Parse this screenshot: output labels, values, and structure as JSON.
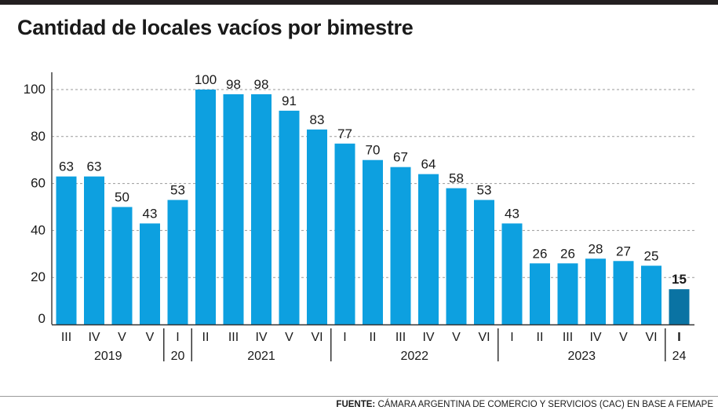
{
  "title": "Cantidad de locales vacíos por bimestre",
  "source": {
    "label": "FUENTE:",
    "text": "CÁMARA ARGENTINA DE COMERCIO Y SERVICIOS (CAC) EN BASE A FEMAPE"
  },
  "colors": {
    "bar": "#0da0e0",
    "highlight_bar": "#0a73a3",
    "grid": "#9a9a9a",
    "text": "#1a1a1a"
  },
  "chart_data": {
    "type": "bar",
    "title": "Cantidad de locales vacíos por bimestre",
    "xlabel": "",
    "ylabel": "",
    "ylim": [
      0,
      100
    ],
    "yticks": [
      0,
      20,
      40,
      60,
      80,
      100
    ],
    "grid": true,
    "categories": [
      "III",
      "IV",
      "V",
      "V",
      "I",
      "II",
      "III",
      "IV",
      "V",
      "VI",
      "I",
      "II",
      "III",
      "IV",
      "V",
      "VI",
      "I",
      "II",
      "III",
      "IV",
      "V",
      "VI",
      "I"
    ],
    "values": [
      63,
      63,
      50,
      43,
      53,
      100,
      98,
      98,
      91,
      83,
      77,
      70,
      67,
      64,
      58,
      53,
      43,
      26,
      26,
      28,
      27,
      25,
      15
    ],
    "highlight_index": 22,
    "year_groups": [
      {
        "label": "2019",
        "start": 0,
        "end": 3
      },
      {
        "label": "20",
        "start": 4,
        "end": 4
      },
      {
        "label": "2021",
        "start": 5,
        "end": 9
      },
      {
        "label": "2022",
        "start": 10,
        "end": 15
      },
      {
        "label": "2023",
        "start": 16,
        "end": 21
      },
      {
        "label": "24",
        "start": 22,
        "end": 22
      }
    ]
  }
}
